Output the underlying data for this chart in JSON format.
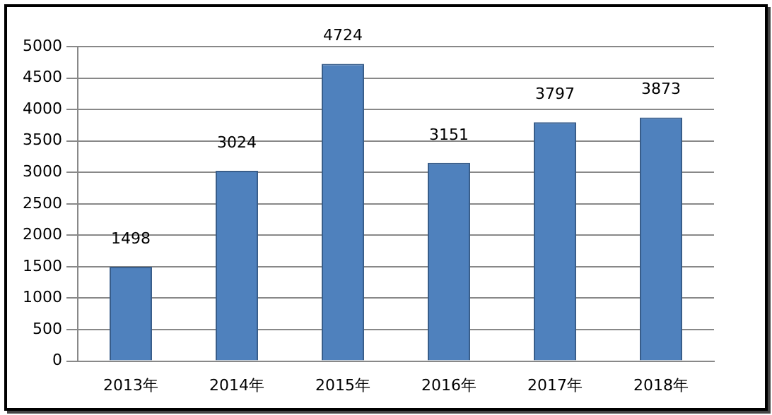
{
  "chart_data": {
    "type": "bar",
    "categories": [
      "2013年",
      "2014年",
      "2015年",
      "2016年",
      "2017年",
      "2018年"
    ],
    "values": [
      1498,
      3024,
      4724,
      3151,
      3797,
      3873
    ],
    "color": "#4f81bd",
    "ylim": [
      0,
      5000
    ],
    "yticks": [
      0,
      500,
      1000,
      1500,
      2000,
      2500,
      3000,
      3500,
      4000,
      4500,
      5000
    ],
    "grid": "y",
    "data_labels": true
  }
}
